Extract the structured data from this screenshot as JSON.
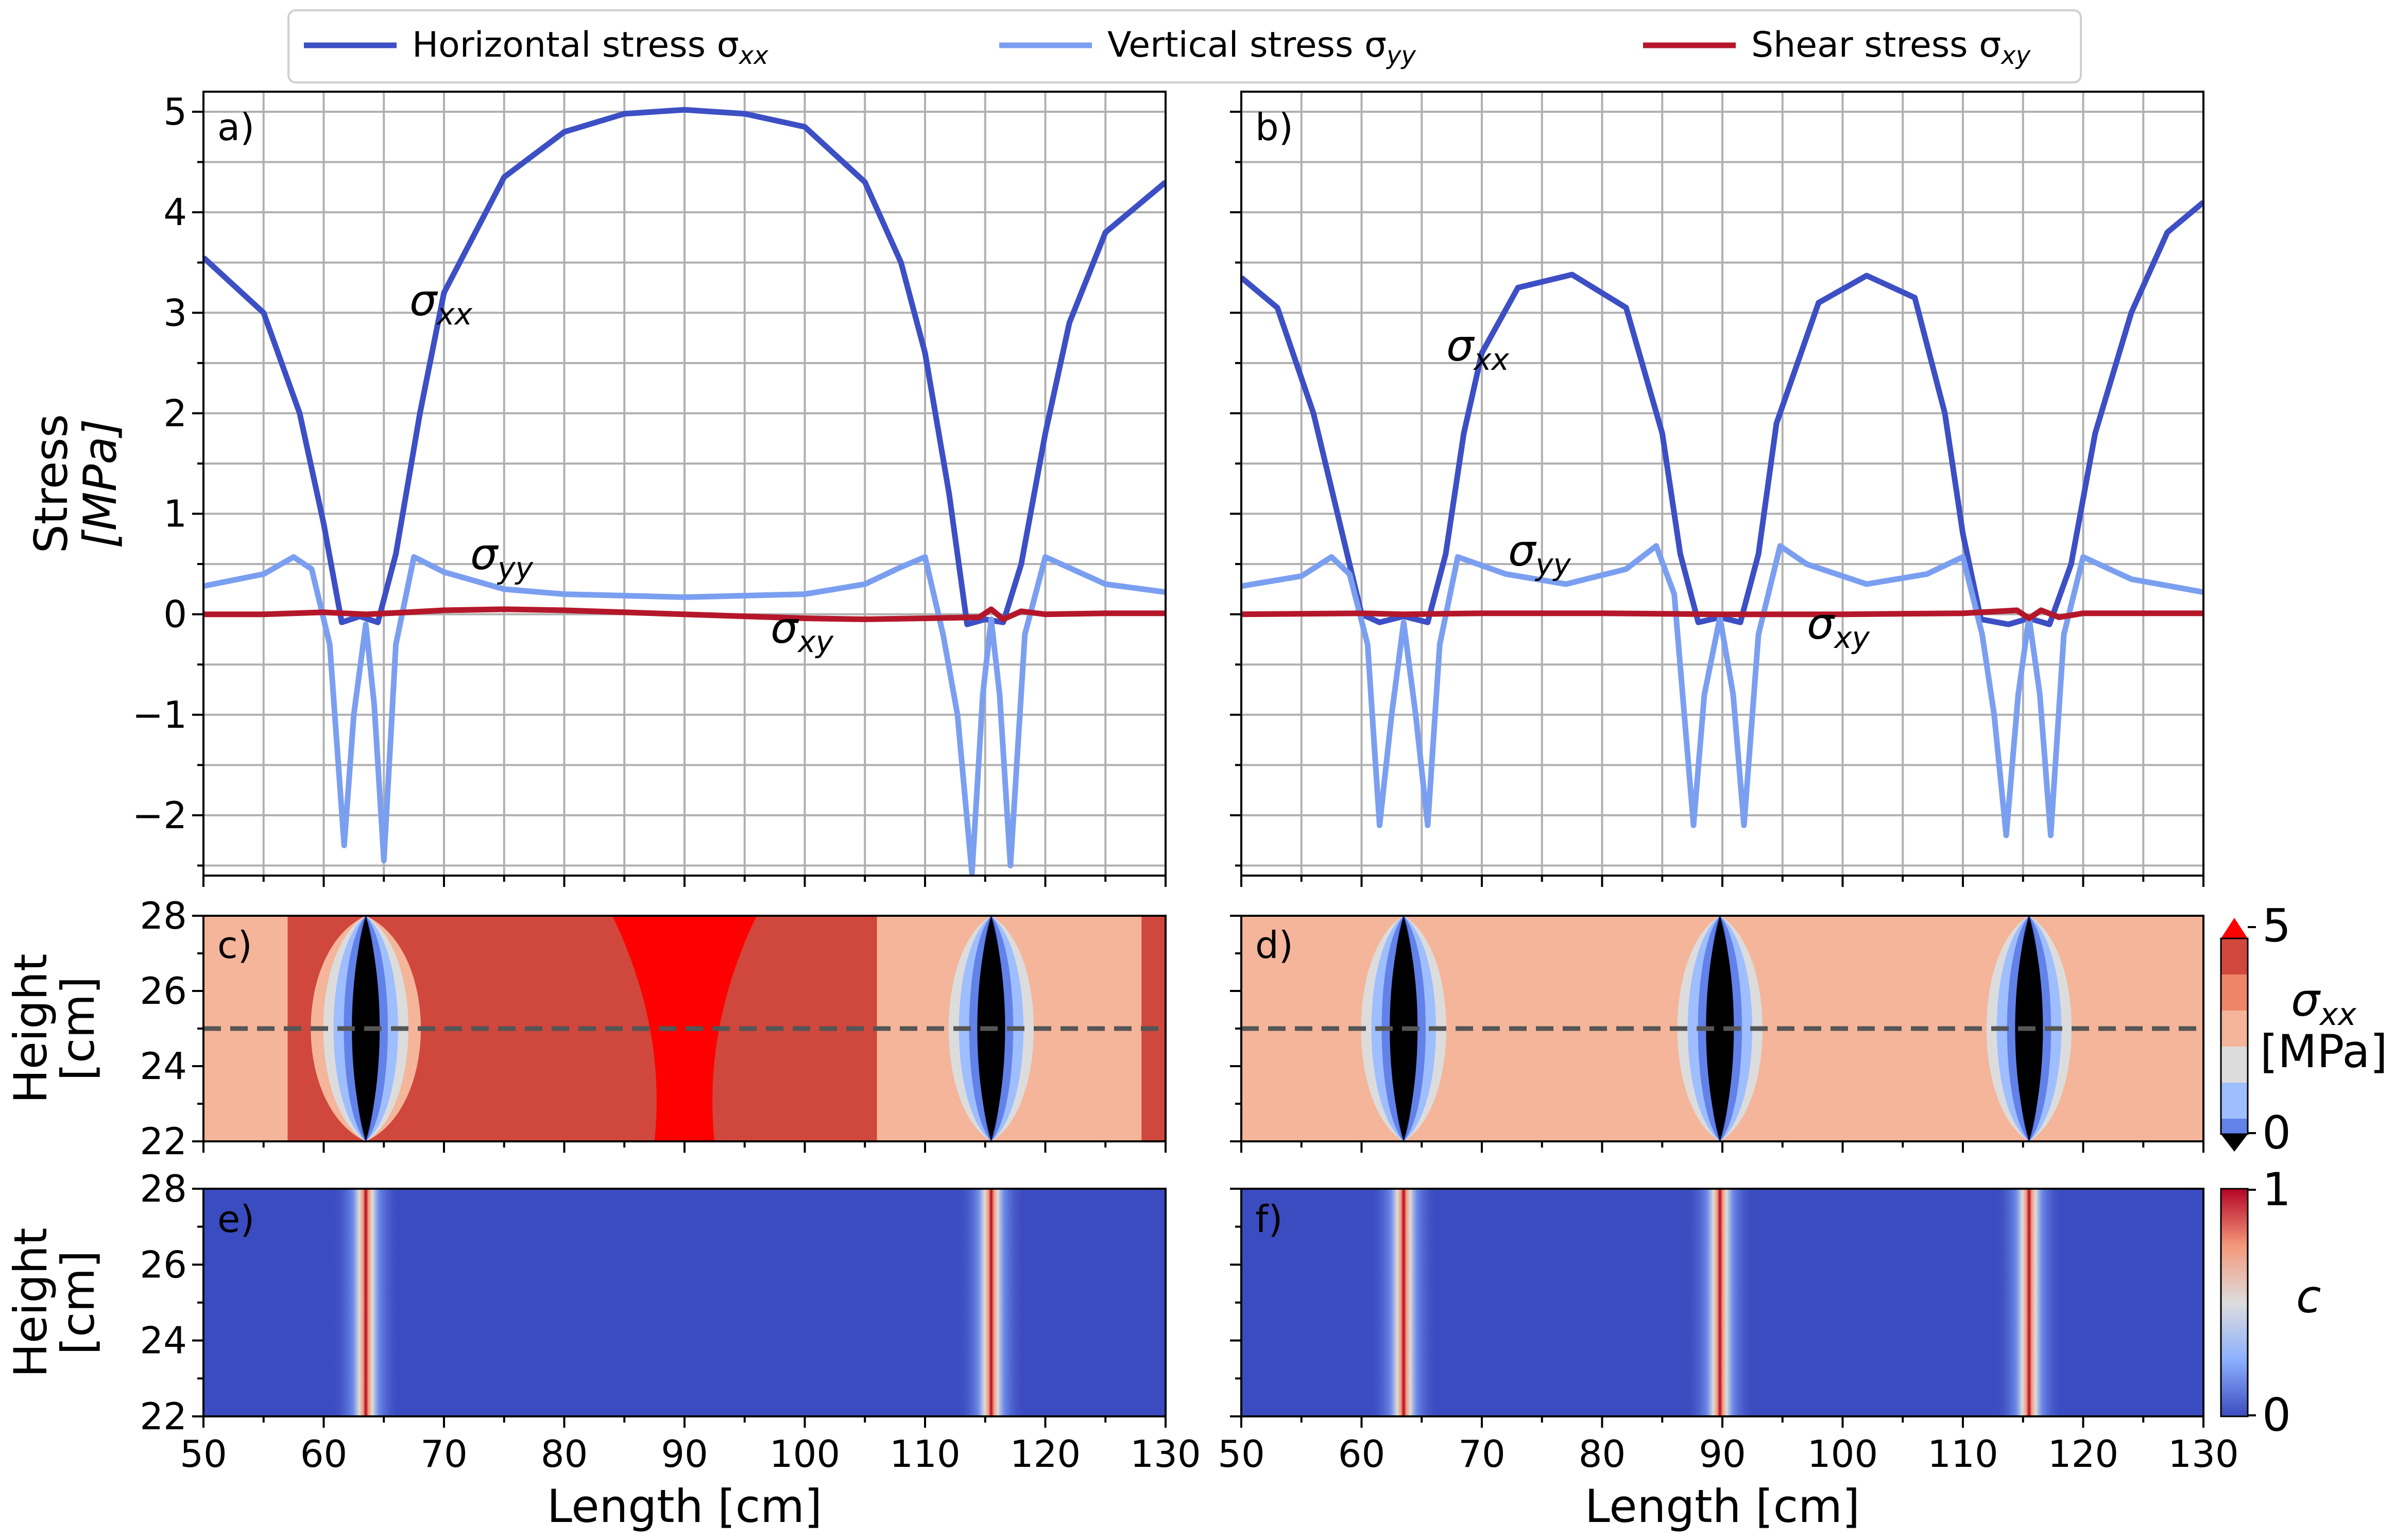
{
  "legend": {
    "items": [
      {
        "label": "Horizontal stress σ",
        "sub": "xx",
        "color": "#3d4fc4"
      },
      {
        "label": "Vertical stress σ",
        "sub": "yy",
        "color": "#7b9ff0"
      },
      {
        "label": "Shear stress σ",
        "sub": "xy",
        "color": "#b5172a"
      }
    ]
  },
  "axes": {
    "stress_ylabel_line1": "Stress",
    "stress_ylabel_line2": "[MPa]",
    "height_ylabel_line1": "Height",
    "height_ylabel_line2": "[cm]",
    "xlabel": "Length [cm]",
    "x_ticks": [
      "50",
      "60",
      "70",
      "80",
      "90",
      "100",
      "110",
      "120",
      "130"
    ],
    "stress_ticks": [
      "5",
      "4",
      "3",
      "2",
      "1",
      "0",
      "−1",
      "−2"
    ],
    "height_ticks": [
      "28",
      "26",
      "24",
      "22"
    ]
  },
  "panels": {
    "a": "a)",
    "b": "b)",
    "c": "c)",
    "d": "d)",
    "e": "e)",
    "f": "f)"
  },
  "curve_labels": {
    "a": {
      "xx": "σ",
      "xx_sub": "xx",
      "yy": "σ",
      "yy_sub": "yy",
      "xy": "σ",
      "xy_sub": "xy"
    },
    "b": {
      "xx": "σ",
      "xx_sub": "xx",
      "yy": "σ",
      "yy_sub": "yy",
      "xy": "σ",
      "xy_sub": "xy"
    }
  },
  "colorbars": {
    "sxx": {
      "label": "σ",
      "label_sub": "xx",
      "unit": "[MPa]",
      "max": "5",
      "min": "0"
    },
    "c": {
      "label": "c",
      "max": "1",
      "min": "0"
    }
  },
  "chart_data": [
    {
      "type": "line",
      "panel": "a",
      "title": "",
      "xlabel": "",
      "ylabel": "Stress [MPa]",
      "xlim": [
        50,
        130
      ],
      "ylim": [
        -2.6,
        5.2
      ],
      "grid": true,
      "crack_positions": [
        63.5,
        115.5
      ],
      "series": [
        {
          "name": "Horizontal stress σxx",
          "x": [
            50,
            55,
            58,
            60,
            61.5,
            63,
            64.5,
            66,
            68,
            70,
            75,
            80,
            85,
            90,
            95,
            100,
            105,
            108,
            110,
            112,
            113.5,
            115,
            116.5,
            118,
            120,
            122,
            125,
            130
          ],
          "y": [
            3.55,
            3.0,
            2.0,
            0.9,
            -0.08,
            -0.02,
            -0.08,
            0.6,
            2.0,
            3.2,
            4.35,
            4.8,
            4.98,
            5.02,
            4.98,
            4.85,
            4.3,
            3.5,
            2.6,
            1.2,
            -0.1,
            -0.05,
            -0.08,
            0.5,
            1.8,
            2.9,
            3.8,
            4.3
          ]
        },
        {
          "name": "Vertical stress σyy",
          "x": [
            50,
            55,
            57.5,
            59,
            60.5,
            61.7,
            62.5,
            63.5,
            64.2,
            65,
            66,
            67.5,
            70,
            75,
            80,
            90,
            100,
            105,
            108,
            110,
            111.5,
            112.7,
            113.9,
            114.8,
            115.5,
            116.2,
            117.1,
            118.3,
            120,
            125,
            130
          ],
          "y": [
            0.28,
            0.4,
            0.57,
            0.45,
            -0.3,
            -2.3,
            -1.0,
            -0.1,
            -0.9,
            -2.45,
            -0.3,
            0.57,
            0.42,
            0.25,
            0.2,
            0.17,
            0.2,
            0.3,
            0.47,
            0.57,
            -0.2,
            -1.0,
            -2.58,
            -0.8,
            -0.05,
            -0.8,
            -2.5,
            -0.2,
            0.57,
            0.3,
            0.22
          ]
        },
        {
          "name": "Shear stress σxy",
          "x": [
            50,
            55,
            60,
            63.5,
            67,
            70,
            75,
            80,
            90,
            95,
            100,
            105,
            110,
            114.5,
            115.5,
            116.5,
            118,
            120,
            125,
            130
          ],
          "y": [
            0.0,
            0.0,
            0.02,
            0.0,
            0.02,
            0.04,
            0.05,
            0.04,
            0.0,
            -0.02,
            -0.04,
            -0.05,
            -0.04,
            -0.03,
            0.05,
            -0.05,
            0.03,
            0.0,
            0.01,
            0.01
          ]
        }
      ]
    },
    {
      "type": "line",
      "panel": "b",
      "title": "",
      "xlabel": "",
      "ylabel": "",
      "xlim": [
        50,
        130
      ],
      "ylim": [
        -2.6,
        5.2
      ],
      "grid": true,
      "crack_positions": [
        63.5,
        89.8,
        115.5
      ],
      "series": [
        {
          "name": "Horizontal stress σxx",
          "x": [
            50,
            53,
            56,
            58,
            60,
            61.5,
            63.5,
            65.5,
            67,
            68.5,
            70,
            73,
            77.5,
            82,
            85,
            86.5,
            88,
            89.8,
            91.5,
            93,
            94.5,
            98,
            102,
            106,
            108.5,
            110,
            111.5,
            113.8,
            115.5,
            117.2,
            119,
            121,
            124,
            127,
            130
          ],
          "y": [
            3.35,
            3.05,
            2.0,
            1.0,
            0.0,
            -0.08,
            -0.02,
            -0.08,
            0.6,
            1.8,
            2.6,
            3.25,
            3.38,
            3.05,
            1.8,
            0.6,
            -0.08,
            -0.03,
            -0.08,
            0.6,
            1.9,
            3.1,
            3.37,
            3.15,
            2.0,
            0.8,
            -0.05,
            -0.1,
            -0.04,
            -0.1,
            0.5,
            1.8,
            3.0,
            3.8,
            4.1
          ]
        },
        {
          "name": "Vertical stress σyy",
          "x": [
            50,
            55,
            57.5,
            59,
            60.5,
            61.5,
            62.5,
            63.5,
            64.5,
            65.5,
            66.5,
            68,
            72,
            77,
            82,
            84.5,
            86,
            87.6,
            88.5,
            89.8,
            90.9,
            91.8,
            93,
            94.8,
            97,
            102,
            107,
            110,
            111.6,
            112.6,
            113.6,
            114.6,
            115.5,
            116.4,
            117.3,
            118.4,
            120,
            124,
            130
          ],
          "y": [
            0.28,
            0.38,
            0.57,
            0.4,
            -0.3,
            -2.1,
            -1.0,
            -0.08,
            -1.0,
            -2.1,
            -0.3,
            0.57,
            0.4,
            0.3,
            0.45,
            0.68,
            0.2,
            -2.1,
            -0.8,
            -0.03,
            -0.8,
            -2.1,
            -0.2,
            0.68,
            0.5,
            0.3,
            0.4,
            0.57,
            -0.2,
            -1.0,
            -2.2,
            -0.8,
            -0.03,
            -0.8,
            -2.2,
            -0.2,
            0.57,
            0.35,
            0.22
          ]
        },
        {
          "name": "Shear stress σxy",
          "x": [
            50,
            60,
            63.5,
            70,
            80,
            89.8,
            100,
            110,
            114.5,
            115.5,
            116.5,
            118,
            120,
            130
          ],
          "y": [
            0.0,
            0.01,
            0.0,
            0.01,
            0.01,
            0.0,
            0.0,
            0.01,
            0.04,
            -0.04,
            0.04,
            -0.03,
            0.01,
            0.01
          ]
        }
      ]
    },
    {
      "type": "heatmap",
      "panel": "c",
      "title": "",
      "ylabel": "Height [cm]",
      "xlim": [
        50,
        130
      ],
      "ylim": [
        22,
        28
      ],
      "variable": "σxx [MPa]",
      "color_range": [
        0,
        5
      ],
      "crack_positions": [
        63.5,
        115.5
      ],
      "dashed_line_y": 25
    },
    {
      "type": "heatmap",
      "panel": "d",
      "title": "",
      "ylabel": "",
      "xlim": [
        50,
        130
      ],
      "ylim": [
        22,
        28
      ],
      "variable": "σxx [MPa]",
      "color_range": [
        0,
        5
      ],
      "crack_positions": [
        63.5,
        89.8,
        115.5
      ],
      "dashed_line_y": 25
    },
    {
      "type": "heatmap",
      "panel": "e",
      "title": "",
      "xlabel": "Length [cm]",
      "ylabel": "Height [cm]",
      "xlim": [
        50,
        130
      ],
      "ylim": [
        22,
        28
      ],
      "variable": "c",
      "color_range": [
        0,
        1
      ],
      "crack_positions": [
        63.5,
        115.5
      ]
    },
    {
      "type": "heatmap",
      "panel": "f",
      "title": "",
      "xlabel": "Length [cm]",
      "ylabel": "",
      "xlim": [
        50,
        130
      ],
      "ylim": [
        22,
        28
      ],
      "variable": "c",
      "color_range": [
        0,
        1
      ],
      "crack_positions": [
        63.5,
        89.8,
        115.5
      ]
    }
  ]
}
